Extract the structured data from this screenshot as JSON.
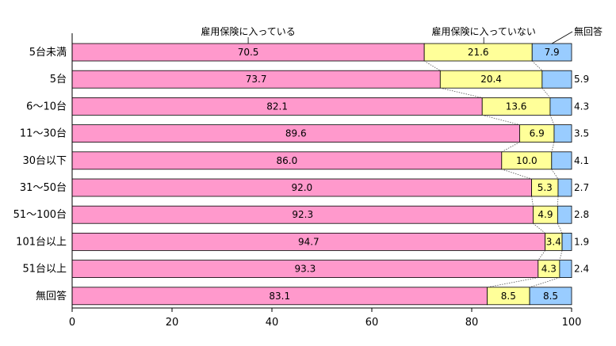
{
  "chart_data": {
    "type": "bar",
    "orientation": "horizontal",
    "stacked": true,
    "categories": [
      "5台未満",
      "5台",
      "6～10台",
      "11～30台",
      "30台以下",
      "31～50台",
      "51～100台",
      "101台以上",
      "51台以上",
      "無回答"
    ],
    "series": [
      {
        "name": "雇用保険に入っている",
        "color": "#ff99cc",
        "values": [
          70.5,
          73.7,
          82.1,
          89.6,
          86.0,
          92.0,
          92.3,
          94.7,
          93.3,
          83.1
        ],
        "labels": [
          "70.5",
          "73.7",
          "82.1",
          "89.6",
          "86.0",
          "92.0",
          "92.3",
          "94.7",
          "93.3",
          "83.1"
        ]
      },
      {
        "name": "雇用保険に入っていない",
        "color": "#ffff99",
        "values": [
          21.6,
          20.4,
          13.6,
          6.9,
          10.0,
          5.3,
          4.9,
          3.4,
          4.3,
          8.5
        ],
        "labels": [
          "21.6",
          "20.4",
          "13.6",
          "6.9",
          "10.0",
          "5.3",
          "4.9",
          "3.4",
          "4.3",
          "8.5"
        ]
      },
      {
        "name": "無回答",
        "color": "#99ccff",
        "values": [
          7.9,
          5.9,
          4.3,
          3.5,
          4.1,
          2.7,
          2.8,
          1.9,
          2.4,
          8.5
        ],
        "labels": [
          "7.9",
          "5.9",
          "4.3",
          "3.5",
          "4.1",
          "2.7",
          "2.8",
          "1.9",
          "2.4",
          "8.5"
        ]
      }
    ],
    "x_ticks": [
      "0",
      "20",
      "40",
      "60",
      "80",
      "100"
    ],
    "xlim": [
      0,
      100
    ],
    "series_lines": true,
    "grid": false
  }
}
